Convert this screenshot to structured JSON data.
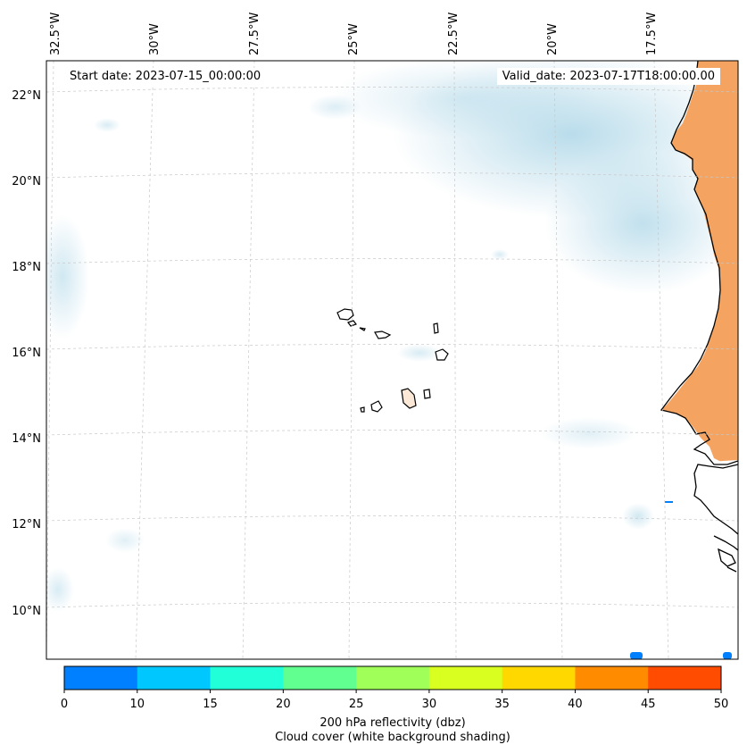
{
  "header": {
    "start_date": "Start date: 2023-07-15_00:00:00",
    "valid_date": "Valid_date: 2023-07-17T18:00:00.00"
  },
  "axes": {
    "lon_labels": [
      "32.5°W",
      "30°W",
      "27.5°W",
      "25°W",
      "22.5°W",
      "20°W",
      "17.5°W"
    ],
    "lat_labels": [
      "22°N",
      "20°N",
      "18°N",
      "16°N",
      "14°N",
      "12°N",
      "10°N"
    ]
  },
  "colorbar": {
    "tick_labels": [
      "0",
      "10",
      "15",
      "20",
      "25",
      "30",
      "35",
      "40",
      "45",
      "50"
    ],
    "title_line1": "200 hPa reflectivity (dbz)",
    "title_line2": "Cloud cover (white background shading)",
    "colors": [
      "#0080ff",
      "#00c8ff",
      "#20ffd8",
      "#60ff90",
      "#a0ff58",
      "#d8ff20",
      "#ffd800",
      "#ff8c00",
      "#ff4c00"
    ]
  },
  "colors": {
    "land_desert": "#f4a460",
    "cloud": "#b8dcea",
    "coast": "#000000",
    "grid": "#c8c8c8"
  }
}
